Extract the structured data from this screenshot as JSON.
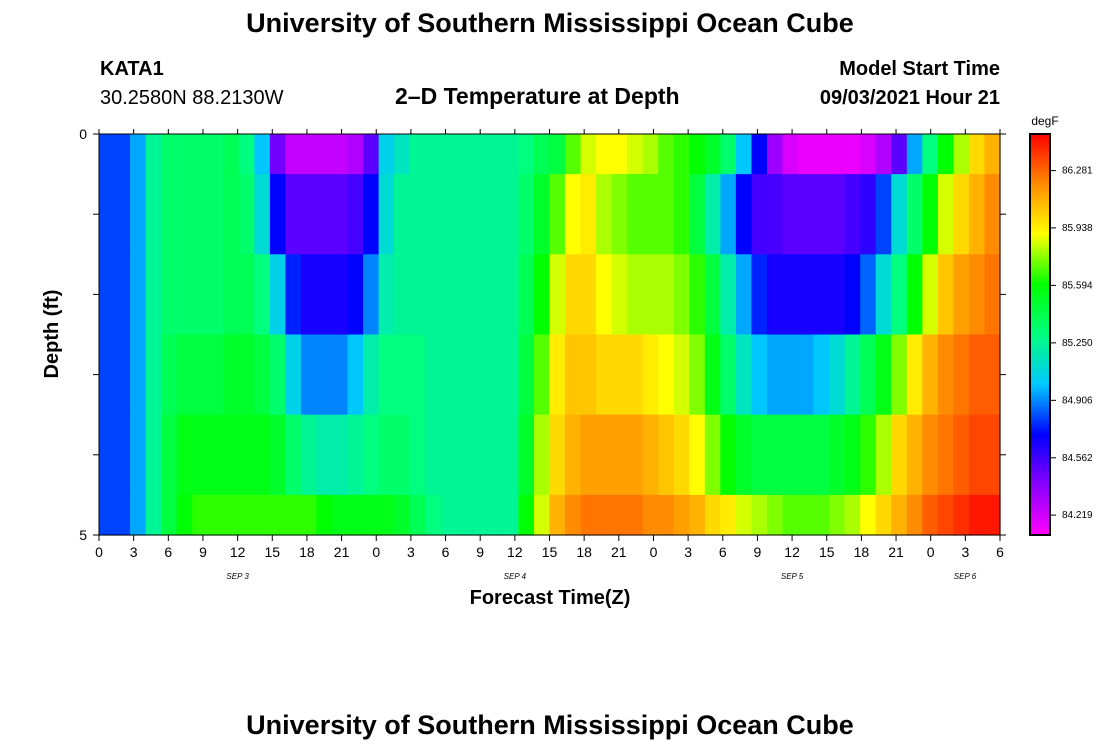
{
  "header": {
    "title": "University of Southern Mississippi Ocean Cube",
    "footer_title": "University of Southern Mississippi Ocean Cube",
    "station_id": "KATA1",
    "station_location": "30.2580N  88.2130W",
    "chart_title": "2–D Temperature at Depth",
    "model_start_label": "Model Start Time",
    "model_start_value": "09/03/2021 Hour 21"
  },
  "chart_data": {
    "type": "heatmap",
    "title": "2–D Temperature at Depth",
    "xlabel": "Forecast Time(Z)",
    "ylabel": "Depth (ft)",
    "x_tick_labels": [
      "0",
      "3",
      "6",
      "9",
      "12",
      "15",
      "18",
      "21",
      "0",
      "3",
      "6",
      "9",
      "12",
      "15",
      "18",
      "21",
      "0",
      "3",
      "6",
      "9",
      "12",
      "15",
      "18",
      "21",
      "0",
      "3",
      "6"
    ],
    "day_labels": [
      "SEP 3",
      "SEP 4",
      "SEP 5",
      "SEP 6"
    ],
    "y_tick_labels": [
      "0",
      "5"
    ],
    "ylim": [
      0,
      5
    ],
    "x_range_hours": [
      0,
      78
    ],
    "colorbar": {
      "unit": "degF",
      "tick_labels": [
        "86.281",
        "85.938",
        "85.594",
        "85.250",
        "84.906",
        "84.562",
        "84.219"
      ],
      "range": [
        84.1,
        86.5
      ],
      "colors": [
        "#ff00ff",
        "#8a00ff",
        "#0000ff",
        "#00c8ff",
        "#00ff7f",
        "#00ff00",
        "#ffff00",
        "#ff8c00",
        "#ff0000"
      ]
    },
    "depth_layers": [
      {
        "depth": 0.25,
        "values": [
          84.8,
          84.8,
          84.95,
          85.25,
          85.35,
          85.35,
          85.35,
          85.35,
          85.4,
          85.3,
          85.0,
          84.45,
          84.25,
          84.25,
          84.25,
          84.25,
          84.3,
          84.5,
          85.05,
          85.15,
          85.25,
          85.25,
          85.25,
          85.25,
          85.25,
          85.25,
          85.25,
          85.3,
          85.4,
          85.45,
          85.7,
          85.85,
          85.9,
          85.9,
          85.85,
          85.8,
          85.7,
          85.65,
          85.6,
          85.5,
          85.35,
          85.0,
          84.7,
          84.35,
          84.2,
          84.15,
          84.15,
          84.15,
          84.15,
          84.2,
          84.3,
          84.5,
          84.95,
          85.3,
          85.6,
          85.8,
          86.0,
          86.1
        ]
      },
      {
        "depth": 1.0,
        "values": [
          84.8,
          84.8,
          84.95,
          85.25,
          85.35,
          85.35,
          85.35,
          85.35,
          85.4,
          85.35,
          85.1,
          84.7,
          84.5,
          84.5,
          84.5,
          84.5,
          84.55,
          84.7,
          85.1,
          85.25,
          85.25,
          85.25,
          85.25,
          85.25,
          85.25,
          85.25,
          85.25,
          85.35,
          85.5,
          85.7,
          85.9,
          85.95,
          85.8,
          85.75,
          85.7,
          85.7,
          85.7,
          85.65,
          85.45,
          85.2,
          84.95,
          84.7,
          84.55,
          84.55,
          84.5,
          84.5,
          84.5,
          84.5,
          84.55,
          84.6,
          84.8,
          85.1,
          85.35,
          85.6,
          85.85,
          86.0,
          86.1,
          86.2
        ]
      },
      {
        "depth": 2.0,
        "values": [
          84.8,
          84.8,
          84.95,
          85.25,
          85.35,
          85.35,
          85.35,
          85.35,
          85.4,
          85.4,
          85.3,
          85.05,
          84.75,
          84.65,
          84.65,
          84.65,
          84.7,
          84.9,
          85.2,
          85.25,
          85.25,
          85.25,
          85.25,
          85.25,
          85.25,
          85.25,
          85.25,
          85.4,
          85.6,
          85.85,
          86.0,
          86.0,
          85.9,
          85.85,
          85.8,
          85.8,
          85.8,
          85.75,
          85.65,
          85.45,
          85.2,
          84.95,
          84.75,
          84.65,
          84.65,
          84.65,
          84.65,
          84.65,
          84.7,
          84.85,
          85.1,
          85.3,
          85.6,
          85.85,
          86.05,
          86.15,
          86.2,
          86.25
        ]
      },
      {
        "depth": 3.0,
        "values": [
          84.8,
          84.8,
          84.95,
          85.25,
          85.4,
          85.45,
          85.45,
          85.45,
          85.5,
          85.5,
          85.45,
          85.35,
          85.05,
          84.9,
          84.9,
          84.9,
          85.0,
          85.2,
          85.3,
          85.3,
          85.3,
          85.25,
          85.25,
          85.25,
          85.25,
          85.25,
          85.25,
          85.45,
          85.7,
          85.95,
          86.05,
          86.05,
          86.0,
          86.0,
          86.0,
          85.95,
          85.9,
          85.85,
          85.75,
          85.55,
          85.35,
          85.15,
          85.0,
          84.95,
          84.95,
          84.95,
          85.0,
          85.1,
          85.25,
          85.4,
          85.55,
          85.75,
          85.95,
          86.1,
          86.2,
          86.25,
          86.3,
          86.3
        ]
      },
      {
        "depth": 4.0,
        "values": [
          84.8,
          84.8,
          84.95,
          85.25,
          85.45,
          85.55,
          85.55,
          85.55,
          85.55,
          85.55,
          85.55,
          85.5,
          85.35,
          85.25,
          85.2,
          85.2,
          85.25,
          85.3,
          85.35,
          85.35,
          85.3,
          85.25,
          85.25,
          85.25,
          85.25,
          85.25,
          85.25,
          85.5,
          85.8,
          86.0,
          86.1,
          86.15,
          86.15,
          86.15,
          86.15,
          86.1,
          86.05,
          86.0,
          85.9,
          85.75,
          85.6,
          85.5,
          85.45,
          85.45,
          85.45,
          85.45,
          85.45,
          85.5,
          85.55,
          85.65,
          85.8,
          86.0,
          86.1,
          86.2,
          86.25,
          86.3,
          86.35,
          86.35
        ]
      },
      {
        "depth": 4.75,
        "values": [
          84.8,
          84.8,
          84.95,
          85.25,
          85.45,
          85.6,
          85.65,
          85.65,
          85.65,
          85.65,
          85.65,
          85.65,
          85.65,
          85.65,
          85.6,
          85.55,
          85.55,
          85.55,
          85.55,
          85.5,
          85.4,
          85.3,
          85.25,
          85.25,
          85.25,
          85.25,
          85.25,
          85.6,
          85.85,
          86.1,
          86.2,
          86.25,
          86.25,
          86.25,
          86.25,
          86.2,
          86.2,
          86.15,
          86.1,
          86.0,
          85.95,
          85.85,
          85.8,
          85.75,
          85.7,
          85.7,
          85.7,
          85.75,
          85.8,
          85.9,
          86.0,
          86.1,
          86.2,
          86.3,
          86.35,
          86.4,
          86.45,
          86.45
        ]
      }
    ]
  }
}
